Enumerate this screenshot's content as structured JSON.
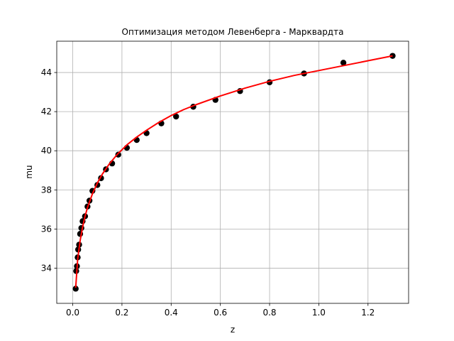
{
  "chart_data": {
    "type": "scatter",
    "title": "Оптимизация методом Левенберга - Марквардта",
    "xlabel": "z",
    "ylabel": "mu",
    "xlim": [
      -0.065,
      1.365
    ],
    "ylim": [
      32.2,
      45.6
    ],
    "xticks": [
      0.0,
      0.2,
      0.4,
      0.6,
      0.8,
      1.0,
      1.2
    ],
    "xtick_labels": [
      "0.0",
      "0.2",
      "0.4",
      "0.6",
      "0.8",
      "1.0",
      "1.2"
    ],
    "yticks": [
      34,
      36,
      38,
      40,
      42,
      44
    ],
    "ytick_labels": [
      "34",
      "36",
      "38",
      "40",
      "42",
      "44"
    ],
    "grid": true,
    "colors": {
      "points": "#000000",
      "fit": "#ff0000",
      "grid": "#b0b0b0"
    },
    "series": [
      {
        "kind": "scatter",
        "x": [
          0.012,
          0.014,
          0.017,
          0.02,
          0.022,
          0.026,
          0.03,
          0.035,
          0.04,
          0.05,
          0.06,
          0.068,
          0.08,
          0.1,
          0.115,
          0.135,
          0.16,
          0.185,
          0.22,
          0.26,
          0.3,
          0.36,
          0.42,
          0.49,
          0.58,
          0.68,
          0.8,
          0.94,
          1.1,
          1.3
        ],
        "y": [
          32.95,
          33.85,
          34.1,
          34.55,
          34.95,
          35.2,
          35.75,
          36.05,
          36.4,
          36.65,
          37.15,
          37.45,
          37.95,
          38.25,
          38.6,
          39.05,
          39.35,
          39.8,
          40.15,
          40.55,
          40.9,
          41.4,
          41.75,
          42.25,
          42.6,
          43.05,
          43.5,
          43.95,
          44.5,
          44.85
        ]
      },
      {
        "kind": "line",
        "x": [
          0.012,
          0.02,
          0.03,
          0.04,
          0.05,
          0.06,
          0.08,
          0.1,
          0.12,
          0.15,
          0.18,
          0.22,
          0.26,
          0.3,
          0.35,
          0.4,
          0.45,
          0.5,
          0.6,
          0.7,
          0.8,
          0.9,
          1.0,
          1.1,
          1.2,
          1.3
        ],
        "y": [
          33.0,
          34.45,
          35.4,
          36.1,
          36.65,
          37.1,
          37.8,
          38.35,
          38.8,
          39.35,
          39.8,
          40.3,
          40.7,
          41.05,
          41.45,
          41.8,
          42.1,
          42.35,
          42.8,
          43.2,
          43.55,
          43.85,
          44.1,
          44.35,
          44.6,
          44.85
        ]
      }
    ]
  }
}
